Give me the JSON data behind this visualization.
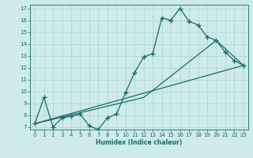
{
  "xlabel": "Humidex (Indice chaleur)",
  "bg_color": "#ceeaea",
  "grid_color": "#aad4d4",
  "line_color": "#1a6b6b",
  "xlim": [
    -0.5,
    23.5
  ],
  "ylim": [
    6.8,
    17.3
  ],
  "xticks": [
    0,
    1,
    2,
    3,
    4,
    5,
    6,
    7,
    8,
    9,
    10,
    11,
    12,
    13,
    14,
    15,
    16,
    17,
    18,
    19,
    20,
    21,
    22,
    23
  ],
  "yticks": [
    7,
    8,
    9,
    10,
    11,
    12,
    13,
    14,
    15,
    16,
    17
  ],
  "line1_x": [
    0,
    1,
    2,
    3,
    4,
    5,
    6,
    7,
    8,
    9,
    10,
    11,
    12,
    13,
    14,
    15,
    16,
    17,
    18,
    19,
    20,
    21,
    22,
    23
  ],
  "line1_y": [
    7.3,
    9.5,
    7.0,
    7.8,
    7.9,
    8.1,
    7.1,
    6.8,
    7.8,
    8.1,
    9.9,
    11.6,
    12.9,
    13.2,
    16.2,
    16.0,
    17.0,
    15.9,
    15.6,
    14.6,
    14.3,
    13.3,
    12.6,
    12.2
  ],
  "line2_x": [
    0,
    23
  ],
  "line2_y": [
    7.3,
    12.2
  ],
  "line3_x": [
    0,
    12,
    20,
    23
  ],
  "line3_y": [
    7.3,
    9.5,
    14.3,
    12.2
  ],
  "marker": "+",
  "markersize": 4,
  "linewidth": 0.9
}
